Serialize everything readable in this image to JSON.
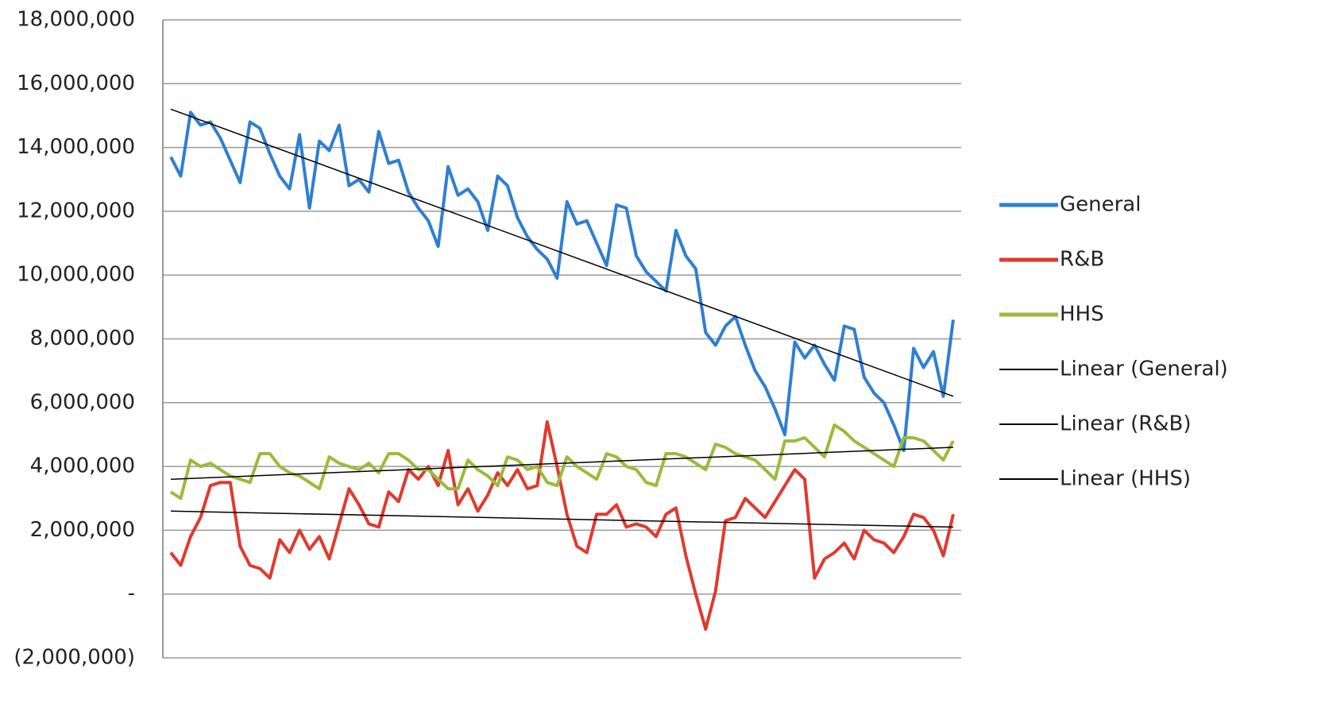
{
  "chart_data": {
    "type": "line",
    "categories": [
      null,
      null,
      null,
      null,
      null,
      null,
      null,
      null,
      null,
      null,
      null,
      null,
      null,
      null,
      null,
      null,
      null,
      null,
      null,
      null,
      null,
      null,
      null,
      null,
      null,
      null,
      null,
      null,
      null,
      null,
      null,
      null,
      null,
      null,
      null,
      null,
      null,
      null,
      null,
      null,
      null,
      null,
      null,
      null,
      null,
      null,
      null,
      null,
      null,
      null,
      null,
      null,
      null,
      null,
      null,
      null,
      null,
      null,
      null,
      null,
      null,
      null,
      null,
      null,
      null,
      null,
      null,
      null,
      null,
      null,
      null,
      null,
      null,
      null,
      null,
      null,
      null,
      null,
      null,
      null
    ],
    "series": [
      {
        "name": "General",
        "color": "#2f7fd1",
        "values": [
          13700000,
          13100000,
          15100000,
          14700000,
          14800000,
          14300000,
          13600000,
          12900000,
          14800000,
          14600000,
          13800000,
          13100000,
          12700000,
          14400000,
          12100000,
          14200000,
          13900000,
          14700000,
          12800000,
          13000000,
          12600000,
          14500000,
          13500000,
          13600000,
          12600000,
          12100000,
          11700000,
          10900000,
          13400000,
          12500000,
          12700000,
          12300000,
          11400000,
          13100000,
          12800000,
          11800000,
          11200000,
          10800000,
          10500000,
          9900000,
          12300000,
          11600000,
          11700000,
          11000000,
          10300000,
          12200000,
          12100000,
          10600000,
          10100000,
          9800000,
          9500000,
          11400000,
          10600000,
          10200000,
          8200000,
          7800000,
          8400000,
          8700000,
          7800000,
          7000000,
          6500000,
          5800000,
          5000000,
          7900000,
          7400000,
          7800000,
          7200000,
          6700000,
          8400000,
          8300000,
          6800000,
          6300000,
          6000000,
          5300000,
          4500000,
          7700000,
          7100000,
          7600000,
          6200000,
          8600000
        ]
      },
      {
        "name": "R&B",
        "color": "#e03a2e",
        "values": [
          1300000,
          900000,
          1800000,
          2400000,
          3400000,
          3500000,
          3500000,
          1500000,
          900000,
          800000,
          500000,
          1700000,
          1300000,
          2000000,
          1400000,
          1800000,
          1100000,
          2200000,
          3300000,
          2800000,
          2200000,
          2100000,
          3200000,
          2900000,
          3900000,
          3600000,
          4000000,
          3400000,
          4500000,
          2800000,
          3300000,
          2600000,
          3100000,
          3800000,
          3400000,
          3900000,
          3300000,
          3400000,
          5400000,
          4000000,
          2500000,
          1500000,
          1300000,
          2500000,
          2500000,
          2800000,
          2100000,
          2200000,
          2100000,
          1800000,
          2500000,
          2700000,
          1200000,
          0,
          -1100000,
          100000,
          2300000,
          2400000,
          3000000,
          2700000,
          2400000,
          2900000,
          3400000,
          3900000,
          3600000,
          500000,
          1100000,
          1300000,
          1600000,
          1100000,
          2000000,
          1700000,
          1600000,
          1300000,
          1800000,
          2500000,
          2400000,
          2000000,
          1200000,
          2500000
        ]
      },
      {
        "name": "HHS",
        "color": "#9bbb3b",
        "values": [
          3200000,
          3000000,
          4200000,
          4000000,
          4100000,
          3900000,
          3700000,
          3600000,
          3500000,
          4400000,
          4400000,
          4000000,
          3800000,
          3700000,
          3500000,
          3300000,
          4300000,
          4100000,
          4000000,
          3900000,
          4100000,
          3800000,
          4400000,
          4400000,
          4200000,
          3900000,
          3900000,
          3600000,
          3300000,
          3300000,
          4200000,
          3900000,
          3700000,
          3400000,
          4300000,
          4200000,
          3900000,
          4000000,
          3500000,
          3400000,
          4300000,
          4000000,
          3800000,
          3600000,
          4400000,
          4300000,
          4000000,
          3900000,
          3500000,
          3400000,
          4400000,
          4400000,
          4300000,
          4100000,
          3900000,
          4700000,
          4600000,
          4400000,
          4300000,
          4200000,
          3900000,
          3600000,
          4800000,
          4800000,
          4900000,
          4600000,
          4300000,
          5300000,
          5100000,
          4800000,
          4600000,
          4400000,
          4200000,
          4000000,
          4900000,
          4900000,
          4800000,
          4500000,
          4200000,
          4800000
        ]
      }
    ],
    "trendlines": [
      {
        "name": "Linear (General)",
        "color": "#000000",
        "values": [
          15200000,
          6200000
        ]
      },
      {
        "name": "Linear (R&B)",
        "color": "#000000",
        "values": [
          2600000,
          2100000
        ]
      },
      {
        "name": "Linear (HHS)",
        "color": "#000000",
        "values": [
          3600000,
          4600000
        ]
      }
    ],
    "ylim": [
      -2000000,
      18000000
    ],
    "yticks": [
      {
        "value": -2000000,
        "label": "(2,000,000)"
      },
      {
        "value": 0,
        "label": "-"
      },
      {
        "value": 2000000,
        "label": "2,000,000"
      },
      {
        "value": 4000000,
        "label": "4,000,000"
      },
      {
        "value": 6000000,
        "label": "6,000,000"
      },
      {
        "value": 8000000,
        "label": "8,000,000"
      },
      {
        "value": 10000000,
        "label": "10,000,000"
      },
      {
        "value": 12000000,
        "label": "12,000,000"
      },
      {
        "value": 14000000,
        "label": "14,000,000"
      },
      {
        "value": 16000000,
        "label": "16,000,000"
      },
      {
        "value": 18000000,
        "label": "18,000,000"
      }
    ],
    "grid": true,
    "legend": "right"
  }
}
